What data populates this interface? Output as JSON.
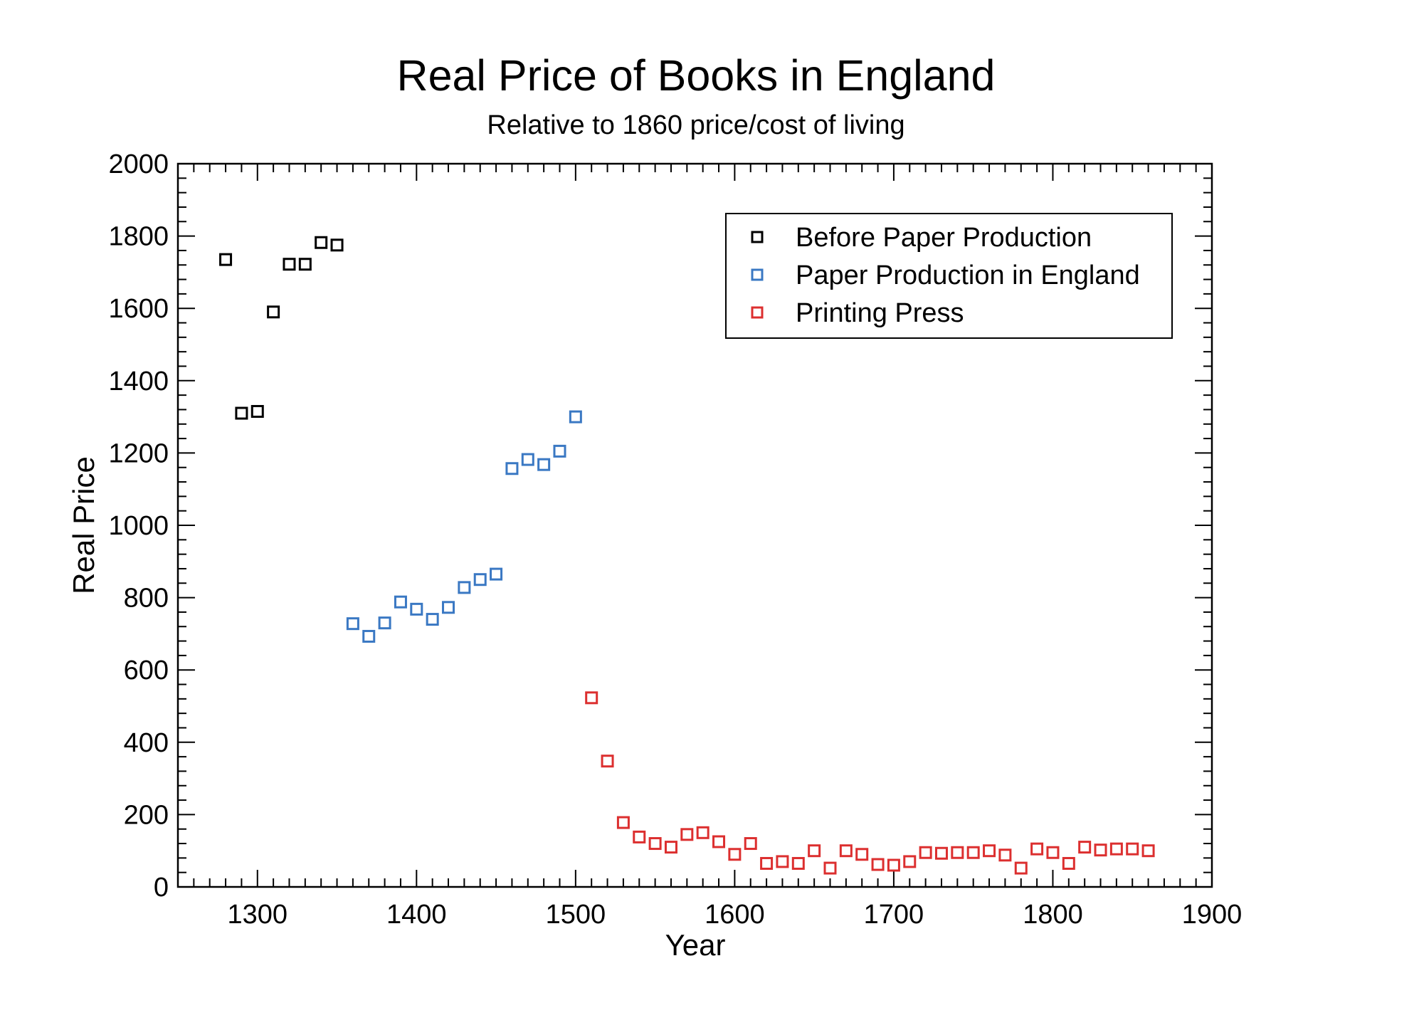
{
  "chart_data": {
    "type": "scatter",
    "title": "Real Price of Books in England",
    "subtitle": "Relative to 1860 price/cost of living",
    "xlabel": "Year",
    "ylabel": "Real Price",
    "xlim": [
      1250,
      1900
    ],
    "ylim": [
      0,
      2000
    ],
    "x_ticks": [
      1300,
      1400,
      1500,
      1600,
      1700,
      1800,
      1900
    ],
    "y_ticks": [
      0,
      200,
      400,
      600,
      800,
      1000,
      1200,
      1400,
      1600,
      1800,
      2000
    ],
    "x_minor_step": 10,
    "y_minor_step": 40,
    "marker": "open-square",
    "legend_position": "top-right",
    "series": [
      {
        "name": "Before Paper Production",
        "color": "#000000",
        "x": [
          1280,
          1290,
          1300,
          1310,
          1320,
          1330,
          1340,
          1350
        ],
        "y": [
          1735,
          1310,
          1315,
          1590,
          1722,
          1722,
          1782,
          1775
        ]
      },
      {
        "name": "Paper Production in England",
        "color": "#3a78c3",
        "x": [
          1360,
          1370,
          1380,
          1390,
          1400,
          1410,
          1420,
          1430,
          1440,
          1450,
          1460,
          1470,
          1480,
          1490,
          1500
        ],
        "y": [
          728,
          693,
          730,
          788,
          768,
          740,
          773,
          828,
          850,
          865,
          1157,
          1182,
          1168,
          1205,
          1300
        ]
      },
      {
        "name": "Printing Press",
        "color": "#dc2f2f",
        "x": [
          1510,
          1520,
          1530,
          1540,
          1550,
          1560,
          1570,
          1580,
          1590,
          1600,
          1610,
          1620,
          1630,
          1640,
          1650,
          1660,
          1670,
          1680,
          1690,
          1700,
          1710,
          1720,
          1730,
          1740,
          1750,
          1760,
          1770,
          1780,
          1790,
          1800,
          1810,
          1820,
          1830,
          1840,
          1850,
          1860
        ],
        "y": [
          523,
          348,
          178,
          138,
          120,
          110,
          145,
          150,
          125,
          90,
          120,
          65,
          70,
          65,
          100,
          52,
          100,
          90,
          62,
          60,
          70,
          95,
          93,
          95,
          95,
          100,
          88,
          52,
          105,
          95,
          65,
          110,
          102,
          105,
          105,
          100
        ]
      }
    ]
  }
}
